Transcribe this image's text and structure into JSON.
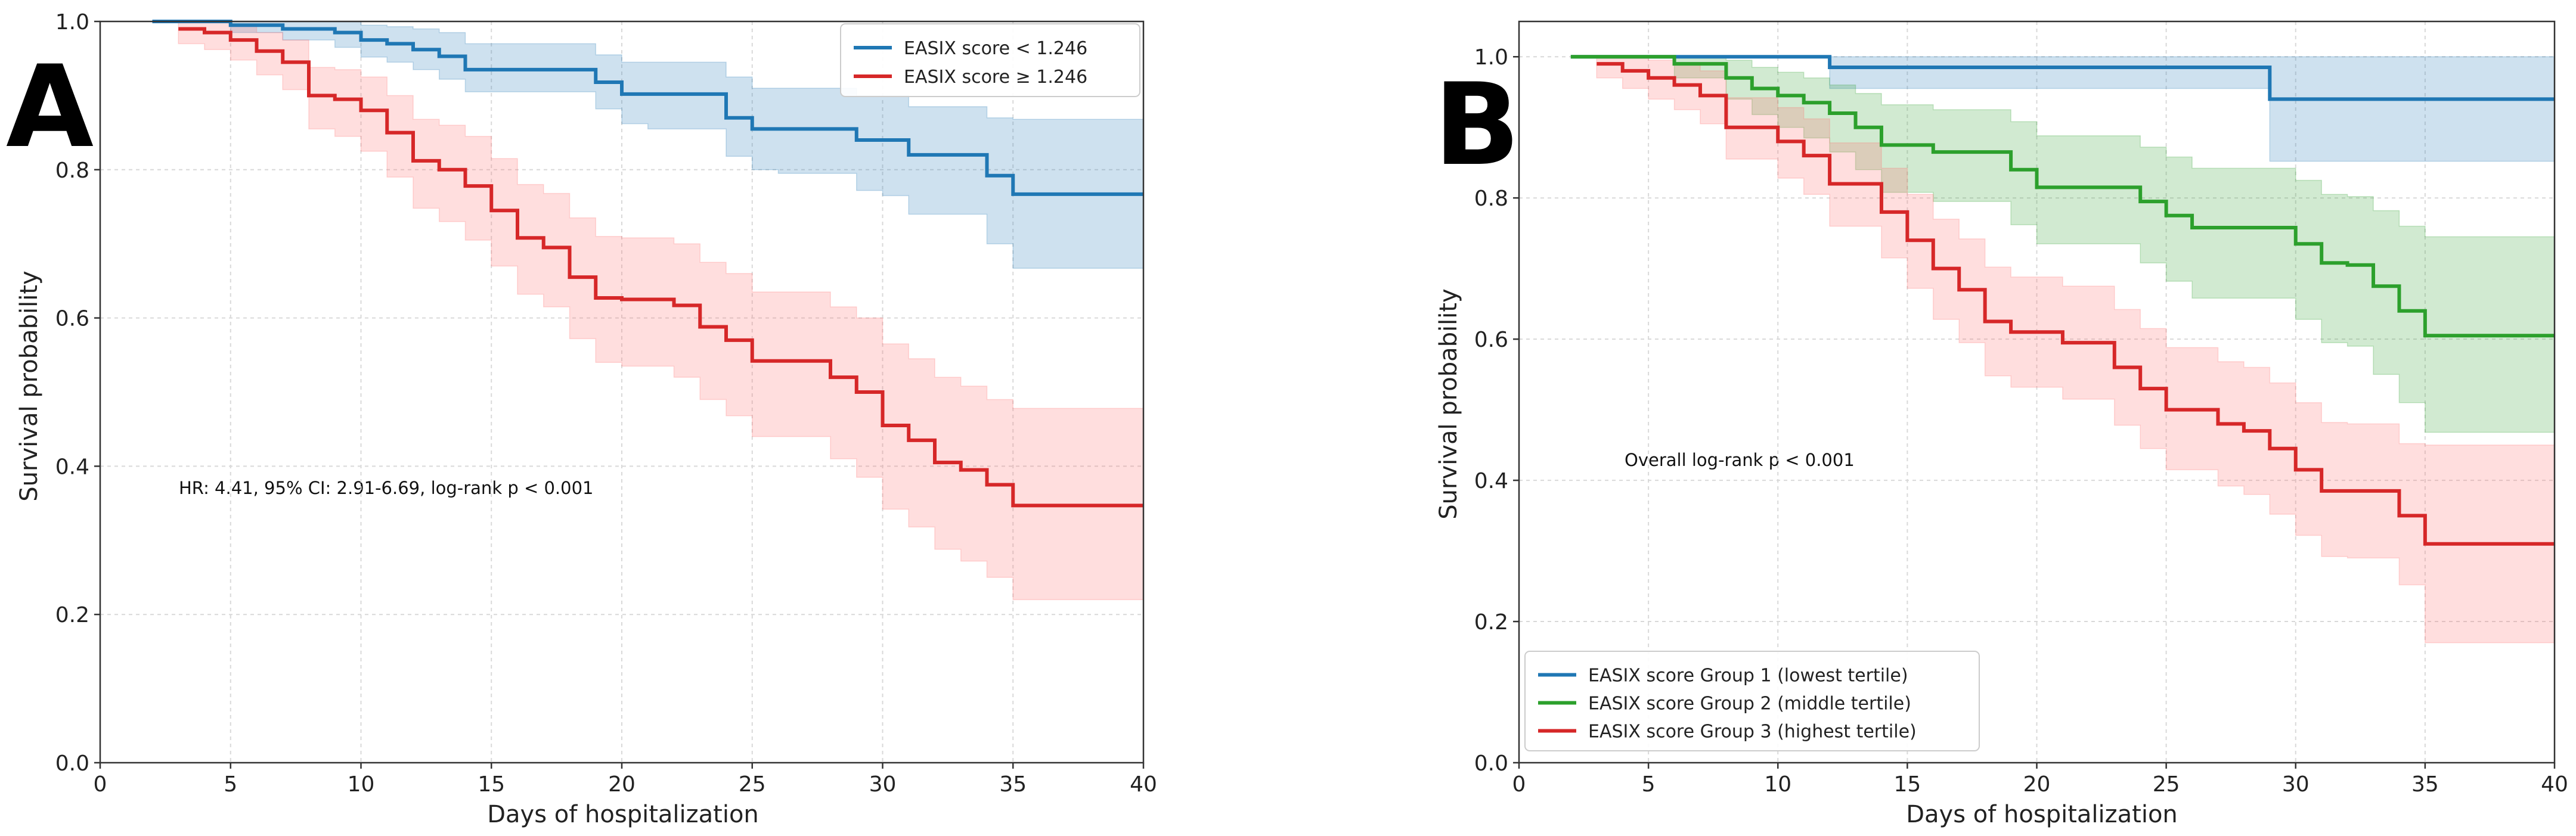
{
  "colors": {
    "blue": "#1f77b4",
    "green": "#2ca02c",
    "red": "#d62728",
    "blueFill": "#1f77b4",
    "greenFill": "#2ca02c",
    "redFill": "#ff6b6b",
    "grid": "#d9d9d9",
    "axis": "#333333"
  },
  "chart_data": [
    {
      "type": "line",
      "chart_kind": "kaplan-meier step",
      "panel_label": "A",
      "xlabel": "Days of hospitalization",
      "ylabel": "Survival probability",
      "xlim": [
        0,
        40
      ],
      "ylim": [
        0.0,
        1.0
      ],
      "xticks": [
        "0",
        "5",
        "10",
        "15",
        "20",
        "25",
        "30",
        "35",
        "40"
      ],
      "yticks": [
        "0.0",
        "0.2",
        "0.4",
        "0.6",
        "0.8",
        "1.0"
      ],
      "grid": true,
      "legend_position": "top-right",
      "annotation": "HR: 4.41, 95% CI: 2.91-6.69, log-rank p < 0.001",
      "series": [
        {
          "name": "EASIX score < 1.246",
          "color": "blue",
          "x": [
            2,
            5,
            7,
            9,
            10,
            11,
            12,
            13,
            14,
            19,
            20,
            21,
            24,
            25,
            26,
            29,
            30,
            31,
            34,
            35,
            40
          ],
          "y": [
            1.0,
            0.995,
            0.99,
            0.985,
            0.975,
            0.97,
            0.962,
            0.953,
            0.935,
            0.918,
            0.902,
            0.902,
            0.87,
            0.855,
            0.855,
            0.84,
            0.84,
            0.82,
            0.792,
            0.767,
            0.767
          ],
          "ci_lower": [
            1.0,
            0.985,
            0.975,
            0.965,
            0.952,
            0.945,
            0.935,
            0.922,
            0.905,
            0.882,
            0.862,
            0.855,
            0.818,
            0.8,
            0.795,
            0.772,
            0.765,
            0.74,
            0.7,
            0.667,
            0.667
          ],
          "ci_upper": [
            1.0,
            1.0,
            1.0,
            1.0,
            0.995,
            0.993,
            0.99,
            0.985,
            0.97,
            0.955,
            0.945,
            0.945,
            0.925,
            0.91,
            0.91,
            0.9,
            0.9,
            0.885,
            0.87,
            0.868,
            0.868
          ]
        },
        {
          "name": "EASIX score ≥ 1.246",
          "color": "red",
          "x": [
            3,
            4,
            5,
            6,
            7,
            8,
            9,
            10,
            11,
            12,
            13,
            14,
            15,
            16,
            17,
            18,
            19,
            20,
            22,
            23,
            24,
            25,
            28,
            29,
            30,
            31,
            32,
            33,
            34,
            35,
            40
          ],
          "y": [
            0.99,
            0.985,
            0.975,
            0.96,
            0.945,
            0.9,
            0.895,
            0.88,
            0.85,
            0.812,
            0.8,
            0.778,
            0.745,
            0.708,
            0.695,
            0.655,
            0.627,
            0.625,
            0.617,
            0.588,
            0.57,
            0.542,
            0.52,
            0.5,
            0.455,
            0.435,
            0.405,
            0.395,
            0.375,
            0.347,
            0.347
          ],
          "ci_lower": [
            0.97,
            0.962,
            0.948,
            0.928,
            0.908,
            0.855,
            0.845,
            0.825,
            0.79,
            0.748,
            0.73,
            0.705,
            0.67,
            0.632,
            0.615,
            0.572,
            0.54,
            0.535,
            0.52,
            0.49,
            0.468,
            0.44,
            0.41,
            0.385,
            0.342,
            0.318,
            0.288,
            0.272,
            0.25,
            0.22,
            0.22
          ],
          "ci_upper": [
            1.0,
            1.0,
            0.995,
            0.985,
            0.975,
            0.938,
            0.935,
            0.925,
            0.9,
            0.868,
            0.86,
            0.845,
            0.815,
            0.78,
            0.768,
            0.735,
            0.71,
            0.708,
            0.7,
            0.675,
            0.66,
            0.635,
            0.615,
            0.6,
            0.565,
            0.545,
            0.52,
            0.508,
            0.49,
            0.478,
            0.478
          ]
        }
      ]
    },
    {
      "type": "line",
      "chart_kind": "kaplan-meier step",
      "panel_label": "B",
      "xlabel": "Days of hospitalization",
      "ylabel": "Survival probability",
      "xlim": [
        0,
        40
      ],
      "ylim": [
        0.0,
        1.05
      ],
      "xticks": [
        "0",
        "5",
        "10",
        "15",
        "20",
        "25",
        "30",
        "35",
        "40"
      ],
      "yticks": [
        "0.0",
        "0.2",
        "0.4",
        "0.6",
        "0.8",
        "1.0"
      ],
      "grid": true,
      "legend_position": "bottom-left",
      "annotation": "Overall log-rank p < 0.001",
      "series": [
        {
          "name": "EASIX score Group 1 (lowest tertile)",
          "color": "blue",
          "x": [
            2,
            12,
            29,
            40
          ],
          "y": [
            1.0,
            0.985,
            0.94,
            0.94
          ],
          "ci_lower": [
            1.0,
            0.955,
            0.852,
            0.852
          ],
          "ci_upper": [
            1.0,
            1.0,
            1.0,
            1.0
          ]
        },
        {
          "name": "EASIX score Group 2 (middle tertile)",
          "color": "green",
          "x": [
            2,
            6,
            8,
            9,
            10,
            11,
            12,
            13,
            14,
            16,
            19,
            20,
            24,
            25,
            26,
            30,
            31,
            32,
            33,
            34,
            35,
            40
          ],
          "y": [
            1.0,
            0.99,
            0.97,
            0.955,
            0.945,
            0.935,
            0.92,
            0.9,
            0.875,
            0.865,
            0.84,
            0.815,
            0.795,
            0.775,
            0.758,
            0.735,
            0.708,
            0.705,
            0.675,
            0.64,
            0.605,
            0.605
          ],
          "ci_lower": [
            1.0,
            0.97,
            0.94,
            0.918,
            0.9,
            0.885,
            0.865,
            0.84,
            0.808,
            0.795,
            0.762,
            0.735,
            0.708,
            0.682,
            0.658,
            0.628,
            0.595,
            0.59,
            0.55,
            0.51,
            0.468,
            0.468
          ],
          "ci_upper": [
            1.0,
            1.0,
            0.995,
            0.985,
            0.978,
            0.97,
            0.96,
            0.948,
            0.932,
            0.925,
            0.908,
            0.888,
            0.872,
            0.858,
            0.842,
            0.825,
            0.805,
            0.802,
            0.782,
            0.76,
            0.745,
            0.745
          ]
        },
        {
          "name": "EASIX score Group 3 (highest tertile)",
          "color": "red",
          "x": [
            3,
            4,
            5,
            6,
            7,
            8,
            10,
            11,
            12,
            14,
            15,
            16,
            17,
            18,
            19,
            21,
            23,
            24,
            25,
            27,
            28,
            29,
            30,
            31,
            32,
            34,
            35,
            40
          ],
          "y": [
            0.99,
            0.98,
            0.97,
            0.96,
            0.945,
            0.9,
            0.88,
            0.86,
            0.82,
            0.78,
            0.74,
            0.7,
            0.67,
            0.625,
            0.61,
            0.595,
            0.56,
            0.53,
            0.5,
            0.48,
            0.47,
            0.445,
            0.415,
            0.385,
            0.385,
            0.35,
            0.31,
            0.31
          ],
          "ci_lower": [
            0.97,
            0.955,
            0.94,
            0.925,
            0.905,
            0.855,
            0.828,
            0.805,
            0.76,
            0.715,
            0.672,
            0.628,
            0.595,
            0.548,
            0.532,
            0.515,
            0.478,
            0.445,
            0.415,
            0.392,
            0.38,
            0.352,
            0.322,
            0.292,
            0.29,
            0.252,
            0.17,
            0.17
          ],
          "ci_upper": [
            1.0,
            1.0,
            0.995,
            0.99,
            0.98,
            0.942,
            0.928,
            0.912,
            0.878,
            0.842,
            0.805,
            0.77,
            0.742,
            0.702,
            0.688,
            0.675,
            0.642,
            0.615,
            0.588,
            0.568,
            0.56,
            0.538,
            0.51,
            0.482,
            0.48,
            0.452,
            0.45,
            0.45
          ]
        }
      ]
    }
  ]
}
